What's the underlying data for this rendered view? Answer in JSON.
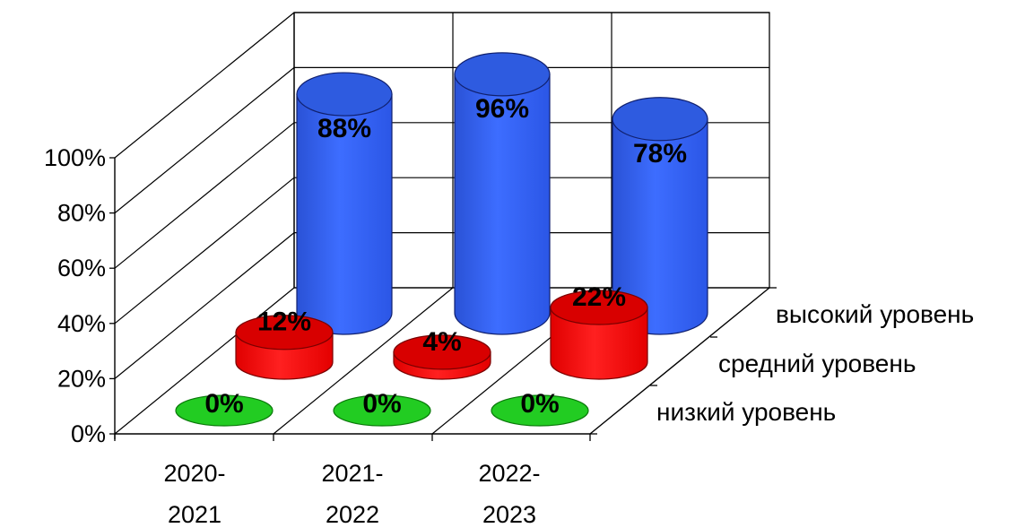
{
  "chart_data": {
    "type": "bar",
    "subtype": "3d-cylinder",
    "categories": [
      [
        "2020-",
        "2021"
      ],
      [
        "2021-",
        "2022"
      ],
      [
        "2022-",
        "2023"
      ]
    ],
    "series": [
      {
        "name": "низкий уровень",
        "values": [
          0,
          0,
          0
        ],
        "labels": [
          "0%",
          "0%",
          "0%"
        ],
        "color": "#16c416"
      },
      {
        "name": "средний уровень",
        "values": [
          12,
          4,
          22
        ],
        "labels": [
          "12%",
          "4%",
          "22%"
        ],
        "color": "#ff1a1a"
      },
      {
        "name": "высокий уровень",
        "values": [
          88,
          96,
          78
        ],
        "labels": [
          "88%",
          "96%",
          "78%"
        ],
        "color": "#3366ff"
      }
    ],
    "y_ticks": [
      "0%",
      "20%",
      "40%",
      "60%",
      "80%",
      "100%"
    ],
    "ylim": [
      0,
      100
    ],
    "grid": true
  }
}
